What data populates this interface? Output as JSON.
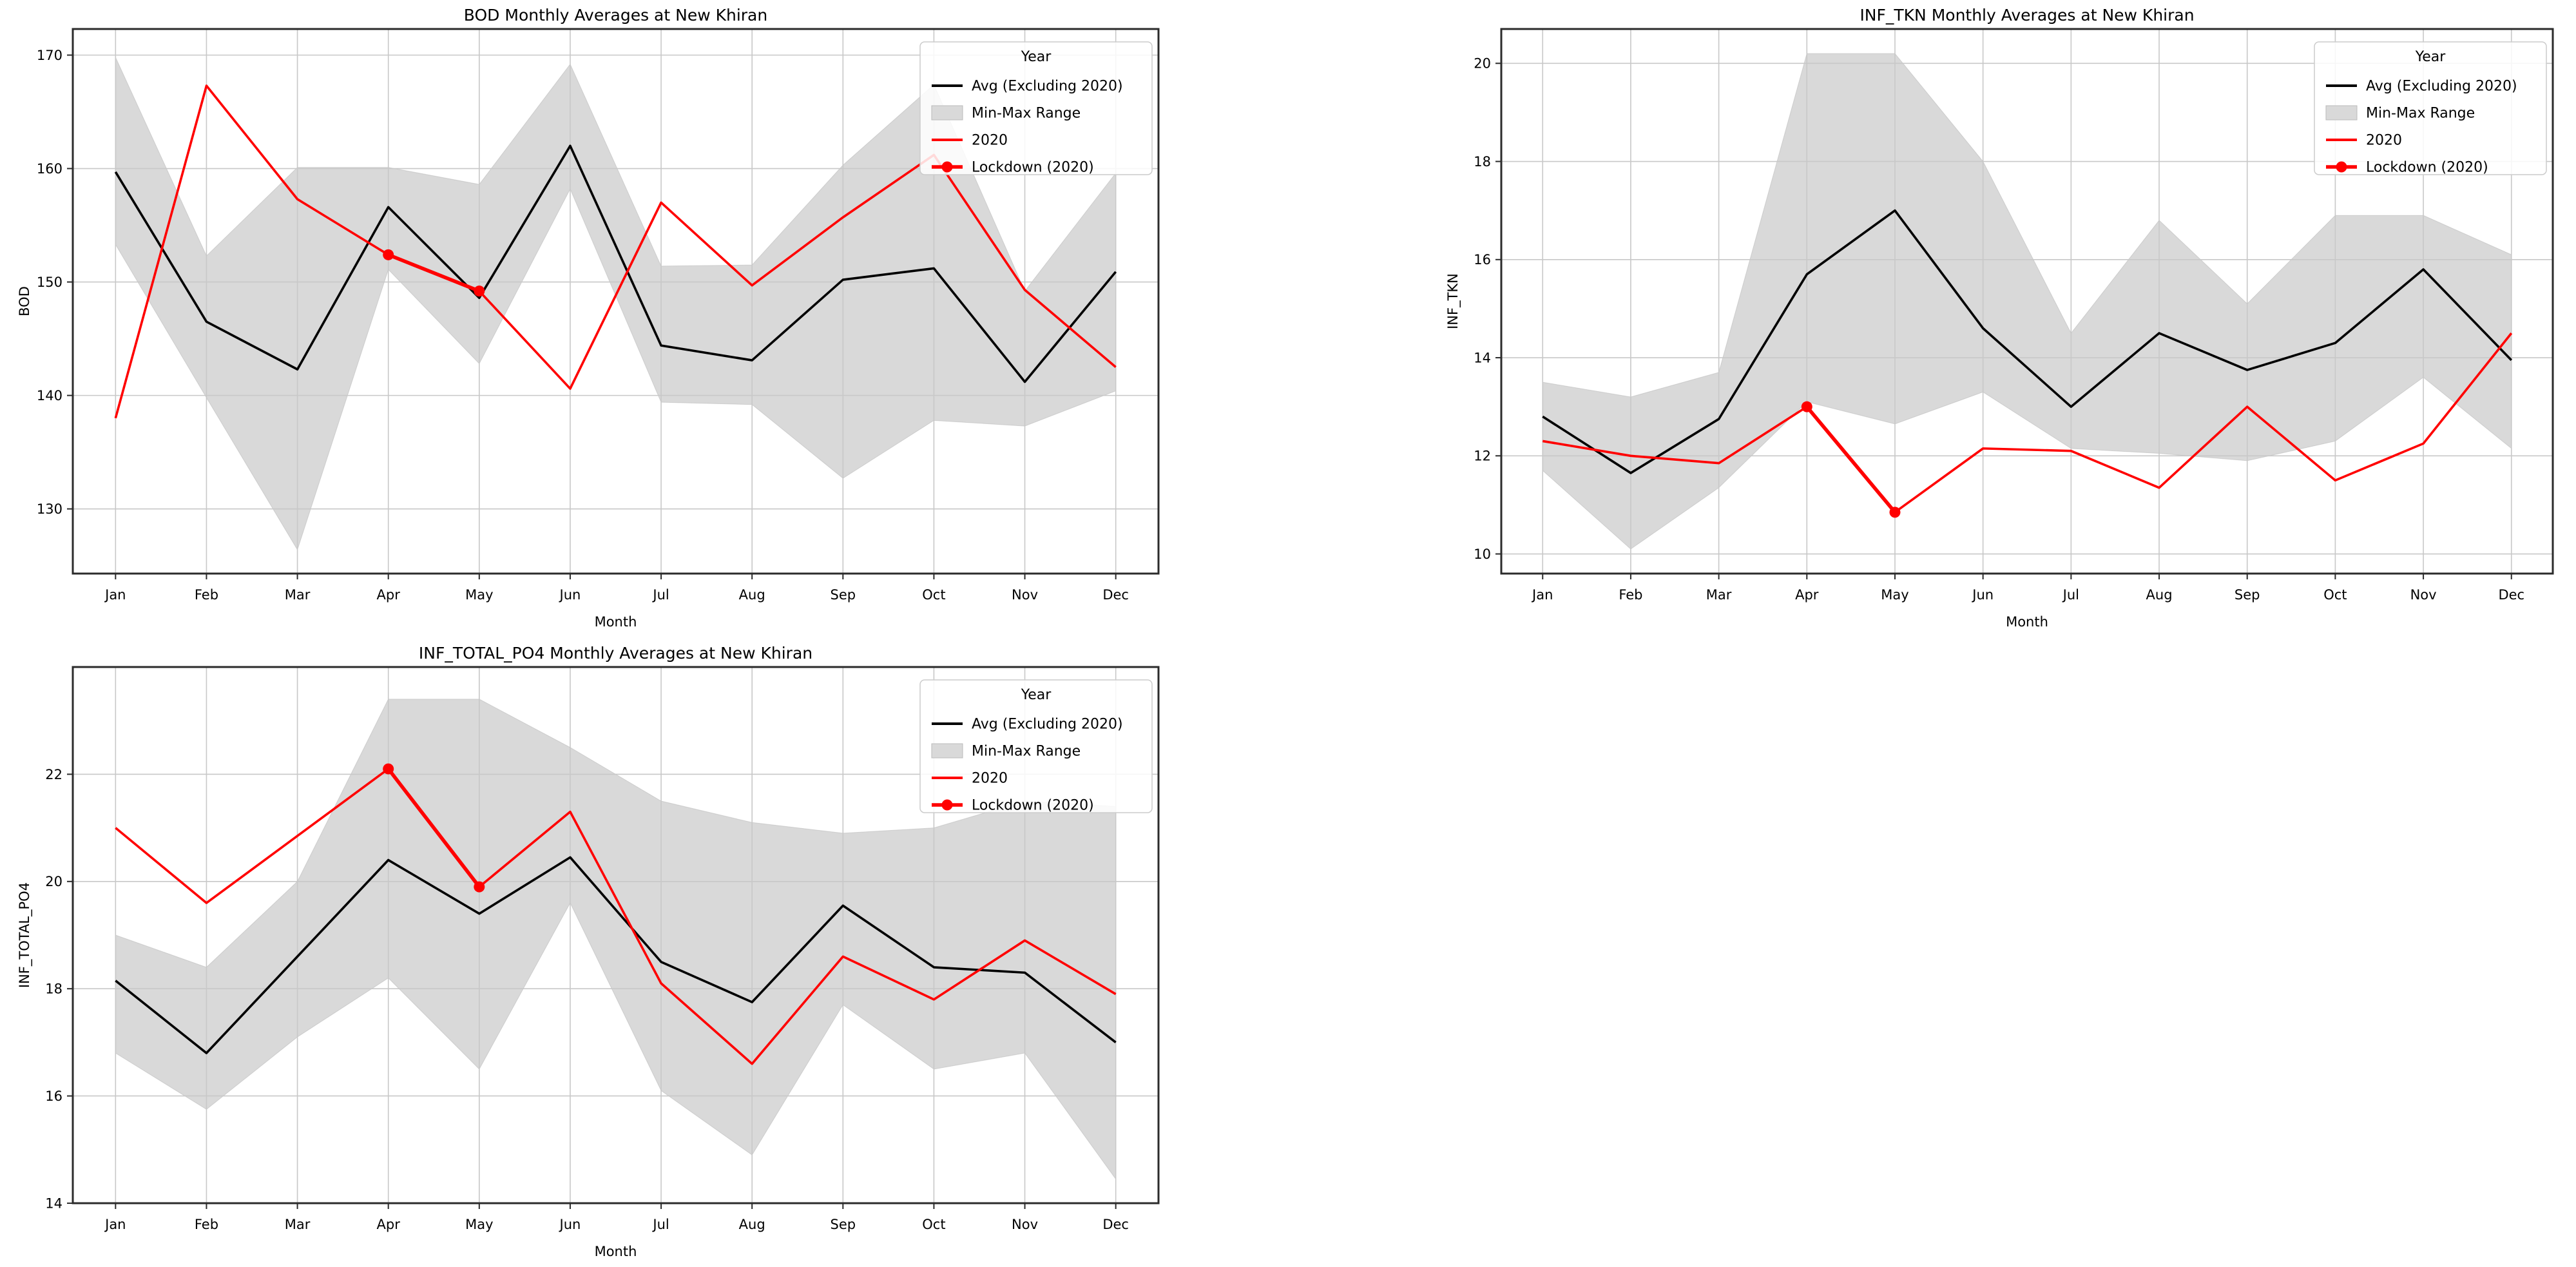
{
  "figure": {
    "background": "#ffffff",
    "text_color": "#000000",
    "grid_color": "#c8c8c8",
    "spine_color": "#2b2b2b"
  },
  "chart_data": [
    {
      "type": "line",
      "title": "BOD Monthly Averages at New Khiran",
      "xlabel": "Month",
      "ylabel": "BOD",
      "categories": [
        "Jan",
        "Feb",
        "Mar",
        "Apr",
        "May",
        "Jun",
        "Jul",
        "Aug",
        "Sep",
        "Oct",
        "Nov",
        "Dec"
      ],
      "yticks": [
        130,
        140,
        150,
        160,
        170
      ],
      "ylim": [
        124.3,
        172.3
      ],
      "grid": true,
      "legend": {
        "title": "Year",
        "position": "upper right",
        "entries": [
          {
            "label": "Avg (Excluding 2020)",
            "swatch": "line",
            "color": "#000000"
          },
          {
            "label": "Min-Max Range",
            "swatch": "patch",
            "color": "#d9d9d9"
          },
          {
            "label": "2020",
            "swatch": "line",
            "color": "#ff0000"
          },
          {
            "label": "Lockdown (2020)",
            "swatch": "line-marker",
            "color": "#ff0000"
          }
        ]
      },
      "band": {
        "name": "Min-Max Range",
        "color": "#8a8a8a",
        "opacity": 0.32,
        "min": [
          153.3,
          139.8,
          126.4,
          151.1,
          142.8,
          158.2,
          139.4,
          139.2,
          132.7,
          137.8,
          137.3,
          140.4
        ],
        "max": [
          169.8,
          152.3,
          160.1,
          160.1,
          158.6,
          169.2,
          151.4,
          151.5,
          160.3,
          167.4,
          149.2,
          159.6
        ]
      },
      "series": [
        {
          "name": "Avg (Excluding 2020)",
          "color": "#000000",
          "values": [
            159.7,
            146.5,
            142.3,
            156.6,
            148.6,
            162.0,
            144.4,
            143.1,
            150.2,
            151.2,
            141.2,
            150.9
          ]
        },
        {
          "name": "2020",
          "color": "#ff0000",
          "values": [
            138.0,
            167.3,
            157.3,
            152.4,
            149.2,
            140.6,
            157.0,
            149.7,
            155.7,
            161.2,
            149.3,
            142.5
          ]
        },
        {
          "name": "Lockdown (2020)",
          "color": "#ff0000",
          "marker": "o",
          "categories": [
            "Apr",
            "May"
          ],
          "values": [
            152.4,
            149.2
          ]
        }
      ]
    },
    {
      "type": "line",
      "title": "INF_TKN Monthly Averages at New Khiran",
      "xlabel": "Month",
      "ylabel": "INF_TKN",
      "categories": [
        "Jan",
        "Feb",
        "Mar",
        "Apr",
        "May",
        "Jun",
        "Jul",
        "Aug",
        "Sep",
        "Oct",
        "Nov",
        "Dec"
      ],
      "yticks": [
        10,
        12,
        14,
        16,
        18,
        20
      ],
      "ylim": [
        9.6,
        20.7
      ],
      "grid": true,
      "legend": {
        "title": "Year",
        "position": "upper right",
        "entries": [
          {
            "label": "Avg (Excluding 2020)",
            "swatch": "line",
            "color": "#000000"
          },
          {
            "label": "Min-Max Range",
            "swatch": "patch",
            "color": "#d9d9d9"
          },
          {
            "label": "2020",
            "swatch": "line",
            "color": "#ff0000"
          },
          {
            "label": "Lockdown (2020)",
            "swatch": "line-marker",
            "color": "#ff0000"
          }
        ]
      },
      "band": {
        "name": "Min-Max Range",
        "color": "#8a8a8a",
        "opacity": 0.32,
        "min": [
          11.7,
          10.1,
          11.35,
          13.1,
          12.65,
          13.3,
          12.15,
          12.05,
          11.9,
          12.3,
          13.6,
          12.15
        ],
        "max": [
          13.5,
          13.2,
          13.7,
          20.2,
          20.2,
          18.0,
          14.5,
          16.8,
          15.1,
          16.9,
          16.9,
          16.1
        ]
      },
      "series": [
        {
          "name": "Avg (Excluding 2020)",
          "color": "#000000",
          "values": [
            12.8,
            11.65,
            12.75,
            15.7,
            17.0,
            14.6,
            13.0,
            14.5,
            13.75,
            14.3,
            15.8,
            13.95
          ]
        },
        {
          "name": "2020",
          "color": "#ff0000",
          "values": [
            12.3,
            12.0,
            11.85,
            13.0,
            10.85,
            12.15,
            12.1,
            11.35,
            13.0,
            11.5,
            12.25,
            14.5
          ]
        },
        {
          "name": "Lockdown (2020)",
          "color": "#ff0000",
          "marker": "o",
          "categories": [
            "Apr",
            "May"
          ],
          "values": [
            13.0,
            10.85
          ]
        }
      ]
    },
    {
      "type": "line",
      "title": "INF_TOTAL_PO4 Monthly Averages at New Khiran",
      "xlabel": "Month",
      "ylabel": "INF_TOTAL_PO4",
      "categories": [
        "Jan",
        "Feb",
        "Mar",
        "Apr",
        "May",
        "Jun",
        "Jul",
        "Aug",
        "Sep",
        "Oct",
        "Nov",
        "Dec"
      ],
      "yticks": [
        14,
        16,
        18,
        20,
        22
      ],
      "ylim": [
        14.0,
        24.0
      ],
      "grid": true,
      "legend": {
        "title": "Year",
        "position": "upper right",
        "entries": [
          {
            "label": "Avg (Excluding 2020)",
            "swatch": "line",
            "color": "#000000"
          },
          {
            "label": "Min-Max Range",
            "swatch": "patch",
            "color": "#d9d9d9"
          },
          {
            "label": "2020",
            "swatch": "line",
            "color": "#ff0000"
          },
          {
            "label": "Lockdown (2020)",
            "swatch": "line-marker",
            "color": "#ff0000"
          }
        ]
      },
      "band": {
        "name": "Min-Max Range",
        "color": "#8a8a8a",
        "opacity": 0.32,
        "min": [
          16.8,
          15.75,
          17.1,
          18.2,
          16.5,
          19.6,
          16.1,
          14.9,
          17.7,
          16.5,
          16.8,
          14.45
        ],
        "max": [
          19.0,
          18.4,
          20.0,
          23.4,
          23.4,
          22.5,
          21.5,
          21.1,
          20.9,
          21.0,
          21.5,
          21.4
        ]
      },
      "series": [
        {
          "name": "Avg (Excluding 2020)",
          "color": "#000000",
          "values": [
            18.15,
            16.8,
            18.6,
            20.4,
            19.4,
            20.45,
            18.5,
            17.75,
            19.55,
            18.4,
            18.3,
            17.0
          ]
        },
        {
          "name": "2020",
          "color": "#ff0000",
          "values": [
            21.0,
            19.6,
            20.85,
            22.1,
            19.9,
            21.3,
            18.1,
            16.6,
            18.6,
            17.8,
            18.9,
            17.9
          ]
        },
        {
          "name": "Lockdown (2020)",
          "color": "#ff0000",
          "marker": "o",
          "categories": [
            "Apr",
            "May"
          ],
          "values": [
            22.1,
            19.9
          ]
        }
      ]
    }
  ]
}
